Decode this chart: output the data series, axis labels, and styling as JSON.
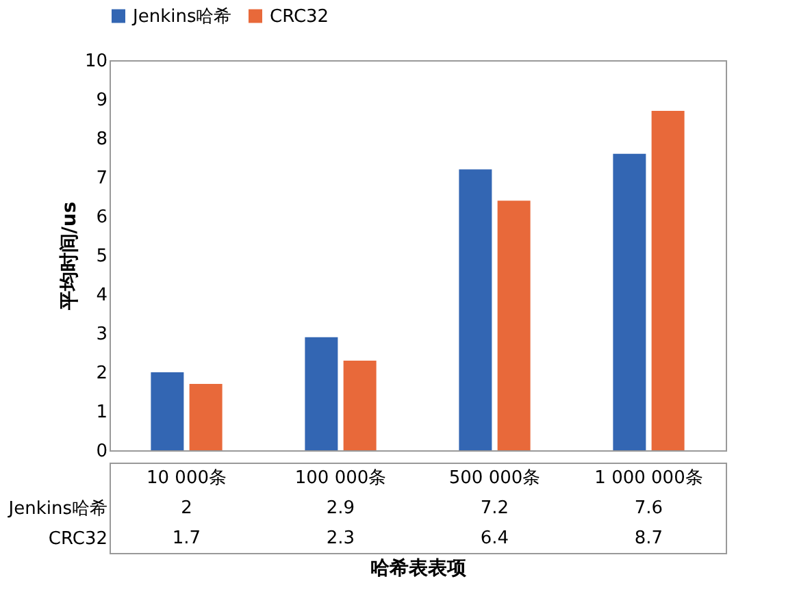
{
  "chart_data": {
    "type": "bar",
    "xlabel": "哈希表表项",
    "ylabel": "平均时间/us",
    "categories": [
      "10 000条",
      "100 000条",
      "500 000条",
      "1 000 000条"
    ],
    "series": [
      {
        "name": "Jenkins哈希",
        "color": "#3366b3",
        "values": [
          2,
          2.9,
          7.2,
          7.6
        ]
      },
      {
        "name": "CRC32",
        "color": "#e8693a",
        "values": [
          1.7,
          2.3,
          6.4,
          8.7
        ]
      }
    ],
    "ylim": [
      0,
      10
    ],
    "yticks": [
      0,
      1,
      2,
      3,
      4,
      5,
      6,
      7,
      8,
      9,
      10
    ],
    "grid": false,
    "legend": "top",
    "data_labels": true
  }
}
